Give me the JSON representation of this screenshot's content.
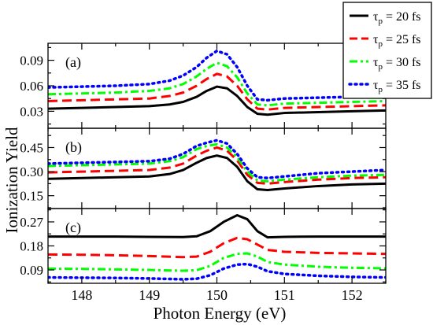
{
  "chart_data": {
    "type": "line",
    "xlabel": "Photon Energy (eV)",
    "ylabel": "Ionization Yield",
    "xlim": [
      147.5,
      152.5
    ],
    "x_ticks": [
      148,
      149,
      150,
      151,
      152
    ],
    "x_tick_labels": [
      "148",
      "149",
      "150",
      "151",
      "152"
    ],
    "legend": {
      "position": "top-right",
      "entries": [
        {
          "label": "τ_p = 20 fs",
          "base": "τ",
          "sub": "p",
          "rest": " = 20 fs",
          "color": "#000000",
          "style": "solid"
        },
        {
          "label": "τ_p = 25 fs",
          "base": "τ",
          "sub": "p",
          "rest": " = 25 fs",
          "color": "#ff0000",
          "style": "dashed"
        },
        {
          "label": "τ_p = 30 fs",
          "base": "τ",
          "sub": "p",
          "rest": " = 30 fs",
          "color": "#00ff00",
          "style": "dashdot"
        },
        {
          "label": "τ_p = 35 fs",
          "base": "τ",
          "sub": "p",
          "rest": " = 35 fs",
          "color": "#0000ff",
          "style": "dotted"
        }
      ]
    },
    "panels": [
      {
        "label": "(a)",
        "ylim": [
          0.01,
          0.11
        ],
        "y_ticks": [
          0.03,
          0.06,
          0.09
        ],
        "y_tick_labels": [
          "0.03",
          "0.06",
          "0.09"
        ],
        "series": [
          {
            "name": "τ_p = 20 fs",
            "x": [
              147.5,
              148,
              148.5,
              149,
              149.3,
              149.5,
              149.7,
              149.85,
              150,
              150.15,
              150.3,
              150.45,
              150.6,
              150.75,
              151,
              151.5,
              152,
              152.5
            ],
            "y": [
              0.033,
              0.034,
              0.035,
              0.036,
              0.038,
              0.041,
              0.047,
              0.054,
              0.059,
              0.057,
              0.048,
              0.035,
              0.027,
              0.026,
              0.028,
              0.029,
              0.03,
              0.031
            ]
          },
          {
            "name": "τ_p = 25 fs",
            "x": [
              147.5,
              148,
              148.5,
              149,
              149.3,
              149.5,
              149.7,
              149.85,
              150,
              150.15,
              150.3,
              150.45,
              150.6,
              150.75,
              151,
              151.5,
              152,
              152.5
            ],
            "y": [
              0.042,
              0.043,
              0.044,
              0.045,
              0.048,
              0.052,
              0.06,
              0.068,
              0.074,
              0.071,
              0.06,
              0.044,
              0.033,
              0.032,
              0.034,
              0.035,
              0.036,
              0.037
            ]
          },
          {
            "name": "τ_p = 30 fs",
            "x": [
              147.5,
              148,
              148.5,
              149,
              149.3,
              149.5,
              149.7,
              149.85,
              150,
              150.15,
              150.3,
              150.45,
              150.6,
              150.75,
              151,
              151.5,
              152,
              152.5
            ],
            "y": [
              0.05,
              0.051,
              0.052,
              0.054,
              0.057,
              0.062,
              0.071,
              0.08,
              0.087,
              0.083,
              0.07,
              0.051,
              0.038,
              0.037,
              0.039,
              0.04,
              0.041,
              0.042
            ]
          },
          {
            "name": "τ_p = 35 fs",
            "x": [
              147.5,
              148,
              148.5,
              149,
              149.3,
              149.5,
              149.7,
              149.85,
              150,
              150.15,
              150.3,
              150.45,
              150.6,
              150.75,
              151,
              151.5,
              152,
              152.5
            ],
            "y": [
              0.058,
              0.059,
              0.06,
              0.062,
              0.066,
              0.072,
              0.082,
              0.093,
              0.101,
              0.097,
              0.082,
              0.06,
              0.044,
              0.043,
              0.045,
              0.046,
              0.047,
              0.048
            ]
          }
        ]
      },
      {
        "label": "(b)",
        "ylim": [
          0.07,
          0.57
        ],
        "y_ticks": [
          0.15,
          0.3,
          0.45
        ],
        "y_tick_labels": [
          "0.15",
          "0.30",
          "0.45"
        ],
        "series": [
          {
            "name": "τ_p = 20 fs",
            "x": [
              147.5,
              148,
              148.5,
              149,
              149.3,
              149.5,
              149.7,
              149.85,
              150,
              150.15,
              150.3,
              150.45,
              150.6,
              150.75,
              151,
              151.5,
              152,
              152.5
            ],
            "y": [
              0.255,
              0.26,
              0.265,
              0.27,
              0.285,
              0.31,
              0.355,
              0.385,
              0.4,
              0.385,
              0.33,
              0.24,
              0.19,
              0.185,
              0.195,
              0.21,
              0.22,
              0.225
            ]
          },
          {
            "name": "τ_p = 25 fs",
            "x": [
              147.5,
              148,
              148.5,
              149,
              149.3,
              149.5,
              149.7,
              149.85,
              150,
              150.15,
              150.3,
              150.45,
              150.6,
              150.75,
              151,
              151.5,
              152,
              152.5
            ],
            "y": [
              0.295,
              0.3,
              0.305,
              0.31,
              0.325,
              0.35,
              0.4,
              0.43,
              0.45,
              0.43,
              0.37,
              0.28,
              0.23,
              0.225,
              0.235,
              0.25,
              0.26,
              0.265
            ]
          },
          {
            "name": "τ_p = 30 fs",
            "x": [
              147.5,
              148,
              148.5,
              149,
              149.3,
              149.5,
              149.7,
              149.85,
              150,
              150.15,
              150.3,
              150.45,
              150.6,
              150.75,
              151,
              151.5,
              152,
              152.5
            ],
            "y": [
              0.335,
              0.34,
              0.345,
              0.35,
              0.365,
              0.39,
              0.44,
              0.46,
              0.47,
              0.45,
              0.39,
              0.3,
              0.245,
              0.24,
              0.25,
              0.265,
              0.275,
              0.28
            ]
          },
          {
            "name": "τ_p = 35 fs",
            "x": [
              147.5,
              148,
              148.5,
              149,
              149.3,
              149.5,
              149.7,
              149.85,
              150,
              150.15,
              150.3,
              150.45,
              150.6,
              150.75,
              151,
              151.5,
              152,
              152.5
            ],
            "y": [
              0.35,
              0.355,
              0.36,
              0.365,
              0.38,
              0.41,
              0.46,
              0.48,
              0.495,
              0.475,
              0.41,
              0.32,
              0.265,
              0.26,
              0.27,
              0.29,
              0.3,
              0.31
            ]
          }
        ]
      },
      {
        "label": "(c)",
        "ylim": [
          0.04,
          0.32
        ],
        "y_ticks": [
          0.09,
          0.18,
          0.27
        ],
        "y_tick_labels": [
          "0.09",
          "0.18",
          "0.27"
        ],
        "series": [
          {
            "name": "τ_p = 20 fs",
            "x": [
              147.5,
              148,
              148.5,
              149,
              149.5,
              149.7,
              149.9,
              150.1,
              150.3,
              150.45,
              150.6,
              150.75,
              151,
              151.5,
              152,
              152.5
            ],
            "y": [
              0.215,
              0.215,
              0.215,
              0.214,
              0.213,
              0.216,
              0.235,
              0.27,
              0.295,
              0.28,
              0.235,
              0.212,
              0.214,
              0.215,
              0.215,
              0.215
            ]
          },
          {
            "name": "τ_p = 25 fs",
            "x": [
              147.5,
              148,
              148.5,
              149,
              149.5,
              149.7,
              149.9,
              150.1,
              150.3,
              150.45,
              150.6,
              150.75,
              151,
              151.5,
              152,
              152.5
            ],
            "y": [
              0.148,
              0.147,
              0.145,
              0.142,
              0.138,
              0.14,
              0.158,
              0.19,
              0.21,
              0.205,
              0.185,
              0.165,
              0.158,
              0.154,
              0.152,
              0.15
            ]
          },
          {
            "name": "τ_p = 30 fs",
            "x": [
              147.5,
              148,
              148.5,
              149,
              149.5,
              149.7,
              149.9,
              150.1,
              150.3,
              150.45,
              150.6,
              150.75,
              151,
              151.5,
              152,
              152.5
            ],
            "y": [
              0.095,
              0.094,
              0.092,
              0.09,
              0.087,
              0.089,
              0.105,
              0.135,
              0.15,
              0.152,
              0.14,
              0.12,
              0.11,
              0.102,
              0.098,
              0.096
            ]
          },
          {
            "name": "τ_p = 35 fs",
            "x": [
              147.5,
              148,
              148.5,
              149,
              149.5,
              149.7,
              149.9,
              150.1,
              150.3,
              150.45,
              150.6,
              150.75,
              151,
              151.5,
              152,
              152.5
            ],
            "y": [
              0.062,
              0.061,
              0.06,
              0.058,
              0.055,
              0.057,
              0.07,
              0.095,
              0.11,
              0.112,
              0.102,
              0.085,
              0.075,
              0.068,
              0.064,
              0.062
            ]
          }
        ]
      }
    ]
  }
}
